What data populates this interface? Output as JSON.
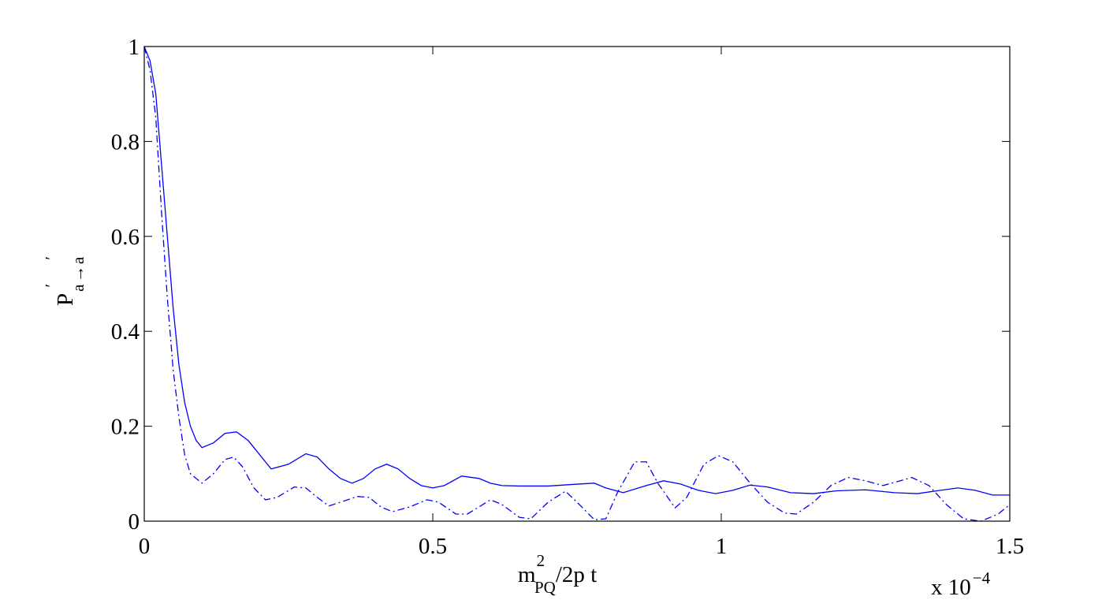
{
  "chart_data": {
    "type": "line",
    "x_label": {
      "base": "m",
      "sup": "2",
      "sub": "PQ",
      "rest": "/2p t"
    },
    "y_label": {
      "base": "P",
      "sub1": "a",
      "prime1": "′",
      "arrow": "→",
      "sub2": "a",
      "prime2": "′"
    },
    "x_multiplier": {
      "base": "x 10",
      "exponent": "−4"
    },
    "xlim": [
      0,
      1.5
    ],
    "xticks": [
      0,
      0.5,
      1,
      1.5
    ],
    "ylim": [
      0,
      1
    ],
    "yticks": [
      0,
      0.2,
      0.4,
      0.6,
      0.8,
      1
    ],
    "grid": false,
    "series": [
      {
        "color": "#0000ff",
        "linestyle": "solid",
        "x": [
          0,
          0.01,
          0.02,
          0.03,
          0.04,
          0.05,
          0.06,
          0.07,
          0.08,
          0.09,
          0.1,
          0.12,
          0.14,
          0.16,
          0.18,
          0.2,
          0.22,
          0.25,
          0.28,
          0.3,
          0.32,
          0.34,
          0.36,
          0.38,
          0.4,
          0.42,
          0.44,
          0.46,
          0.48,
          0.5,
          0.52,
          0.55,
          0.58,
          0.6,
          0.62,
          0.65,
          0.7,
          0.75,
          0.78,
          0.8,
          0.83,
          0.87,
          0.9,
          0.93,
          0.96,
          0.99,
          1.02,
          1.05,
          1.08,
          1.12,
          1.16,
          1.2,
          1.25,
          1.3,
          1.34,
          1.38,
          1.41,
          1.44,
          1.47,
          1.5
        ],
        "values": [
          1.0,
          0.97,
          0.9,
          0.75,
          0.6,
          0.45,
          0.33,
          0.25,
          0.2,
          0.17,
          0.155,
          0.165,
          0.185,
          0.188,
          0.17,
          0.14,
          0.11,
          0.12,
          0.142,
          0.135,
          0.11,
          0.09,
          0.08,
          0.09,
          0.11,
          0.12,
          0.11,
          0.09,
          0.075,
          0.07,
          0.075,
          0.095,
          0.09,
          0.08,
          0.075,
          0.074,
          0.074,
          0.078,
          0.08,
          0.07,
          0.06,
          0.075,
          0.085,
          0.078,
          0.065,
          0.058,
          0.065,
          0.076,
          0.072,
          0.06,
          0.058,
          0.064,
          0.066,
          0.06,
          0.058,
          0.065,
          0.07,
          0.065,
          0.055,
          0.055
        ]
      },
      {
        "color": "#0000ff",
        "linestyle": "dashdot",
        "x": [
          0,
          0.01,
          0.02,
          0.03,
          0.04,
          0.05,
          0.06,
          0.07,
          0.08,
          0.1,
          0.12,
          0.14,
          0.155,
          0.17,
          0.19,
          0.21,
          0.23,
          0.26,
          0.28,
          0.3,
          0.32,
          0.34,
          0.37,
          0.39,
          0.41,
          0.43,
          0.46,
          0.49,
          0.51,
          0.54,
          0.56,
          0.58,
          0.6,
          0.62,
          0.65,
          0.67,
          0.7,
          0.73,
          0.75,
          0.78,
          0.8,
          0.82,
          0.85,
          0.87,
          0.89,
          0.92,
          0.94,
          0.97,
          0.995,
          1.02,
          1.05,
          1.08,
          1.11,
          1.13,
          1.16,
          1.19,
          1.22,
          1.25,
          1.28,
          1.31,
          1.33,
          1.36,
          1.39,
          1.42,
          1.45,
          1.48,
          1.5
        ],
        "values": [
          1.0,
          0.95,
          0.85,
          0.65,
          0.47,
          0.32,
          0.22,
          0.14,
          0.1,
          0.08,
          0.1,
          0.13,
          0.135,
          0.115,
          0.07,
          0.045,
          0.05,
          0.072,
          0.07,
          0.05,
          0.032,
          0.04,
          0.052,
          0.05,
          0.03,
          0.02,
          0.03,
          0.045,
          0.04,
          0.015,
          0.015,
          0.03,
          0.045,
          0.035,
          0.008,
          0.005,
          0.04,
          0.063,
          0.04,
          0.003,
          0.005,
          0.06,
          0.125,
          0.125,
          0.08,
          0.028,
          0.05,
          0.12,
          0.138,
          0.125,
          0.08,
          0.04,
          0.017,
          0.015,
          0.04,
          0.075,
          0.092,
          0.085,
          0.075,
          0.085,
          0.092,
          0.075,
          0.035,
          0.005,
          0.0,
          0.015,
          0.035
        ]
      }
    ]
  }
}
